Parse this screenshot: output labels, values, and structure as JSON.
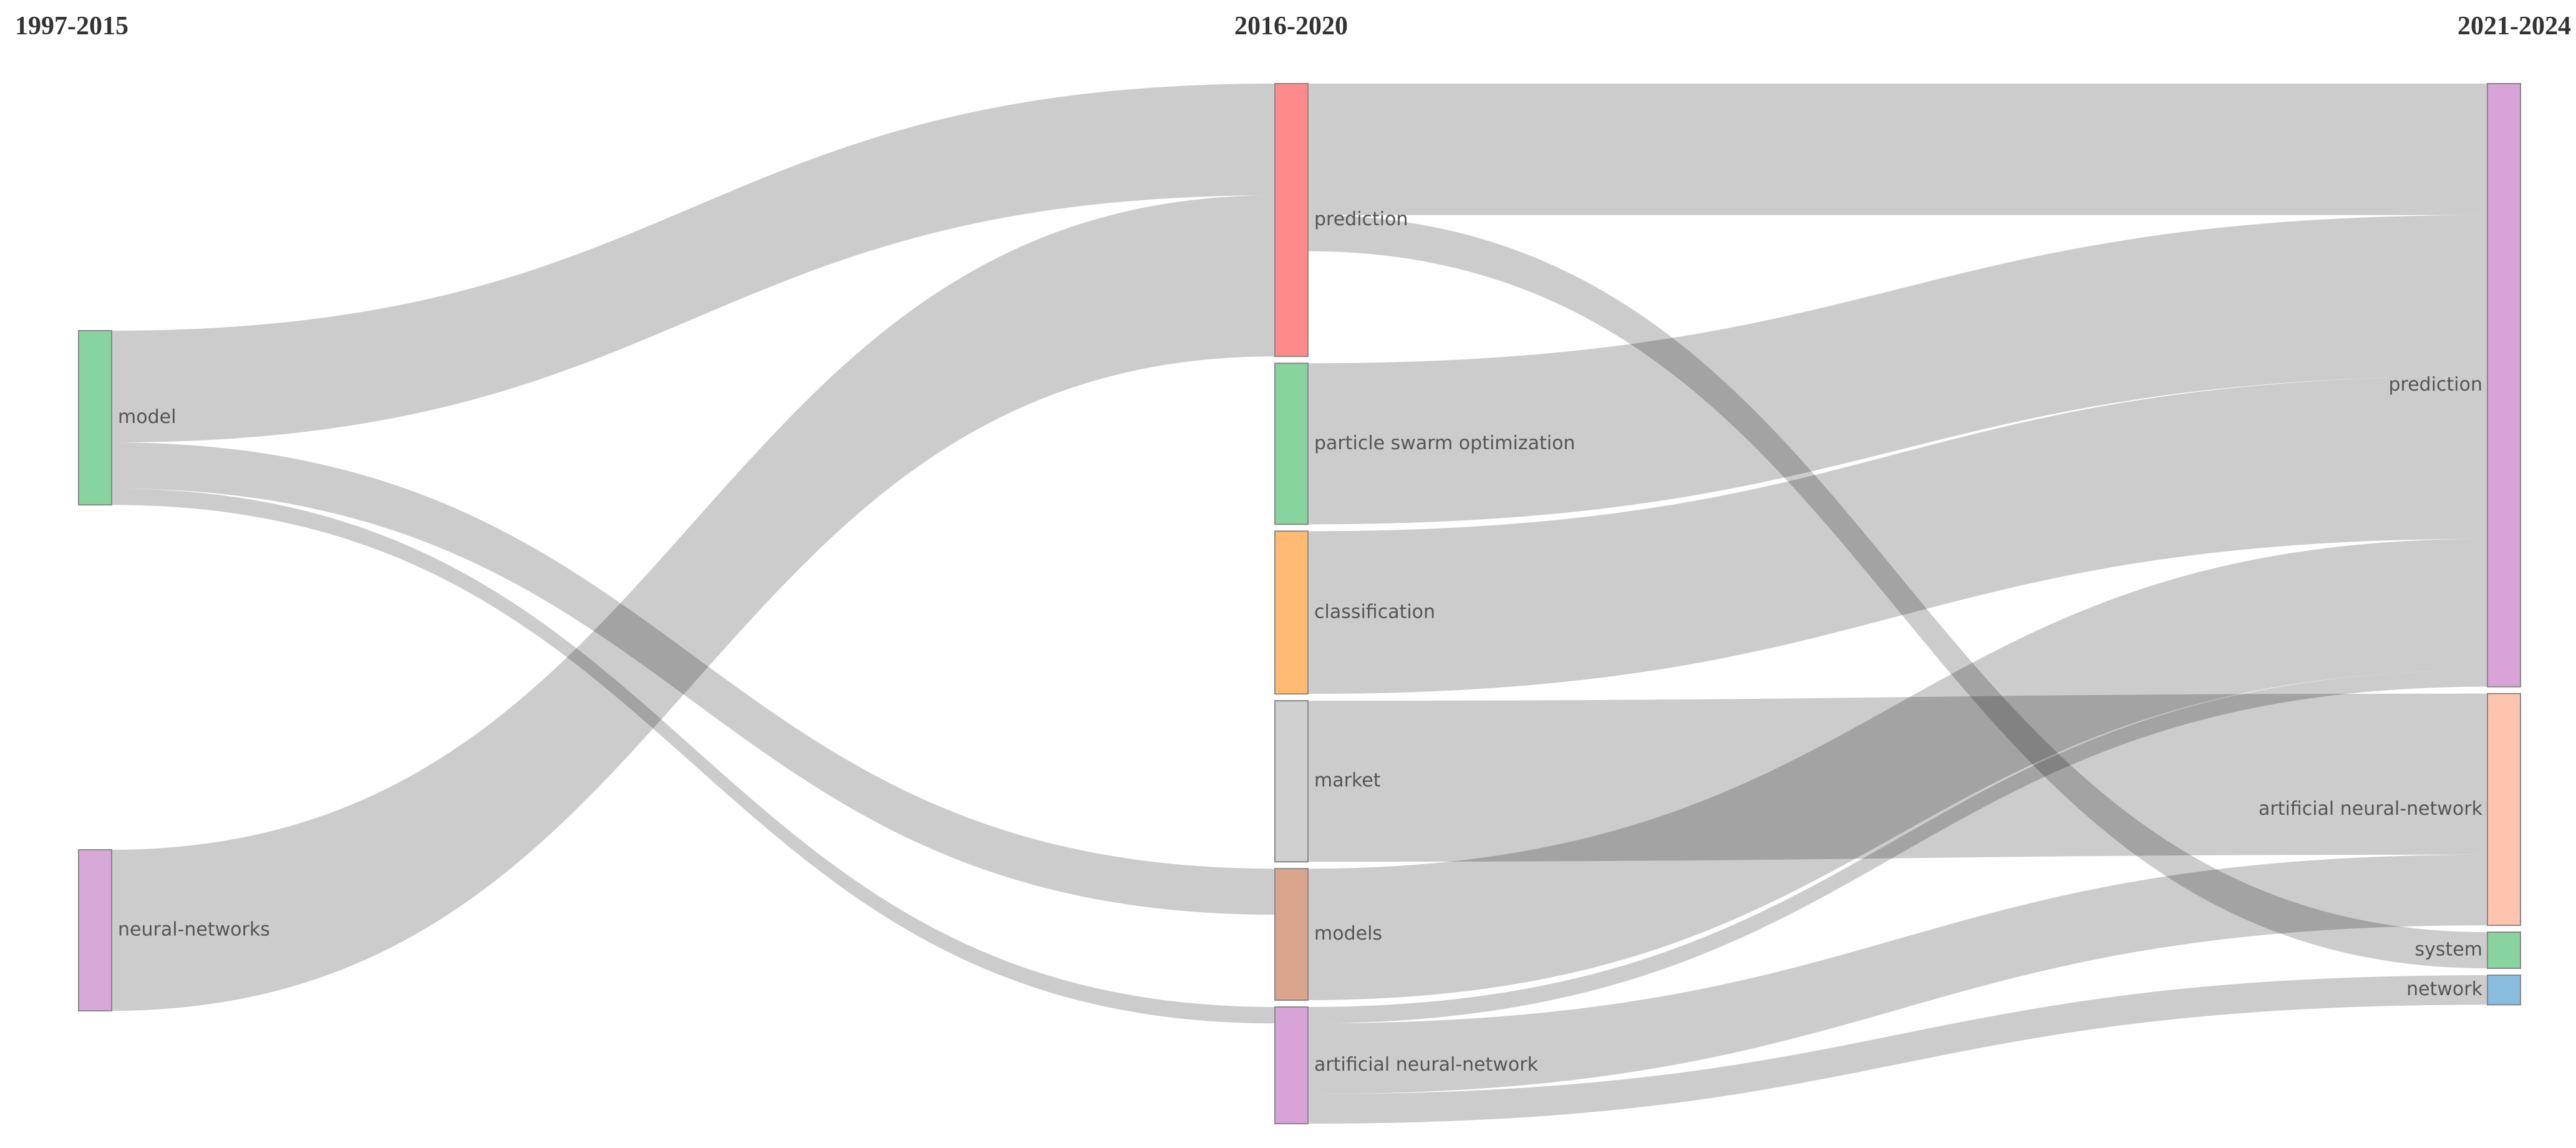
{
  "chart_data": {
    "type": "sankey",
    "columns": [
      "1997-2015",
      "2016-2020",
      "2021-2024"
    ],
    "nodes": [
      {
        "name": "model",
        "column": 0,
        "color": "#88d49e"
      },
      {
        "name": "neural-networks",
        "column": 0,
        "color": "#d8a8d8"
      },
      {
        "name": "prediction",
        "column": 1,
        "color": "#ff8a8a"
      },
      {
        "name": "particle swarm optimization",
        "column": 1,
        "color": "#88d49e"
      },
      {
        "name": "classification",
        "column": 1,
        "color": "#ffbb73"
      },
      {
        "name": "market",
        "column": 1,
        "color": "#d0d0d0"
      },
      {
        "name": "models",
        "column": 1,
        "color": "#dba48c"
      },
      {
        "name": "artificial neural-network",
        "column": 1,
        "color": "#d8a4d8"
      },
      {
        "name": "prediction",
        "column": 2,
        "color": "#d8a4d8"
      },
      {
        "name": "artificial neural-network",
        "column": 2,
        "color": "#ffc4ad"
      },
      {
        "name": "system",
        "column": 2,
        "color": "#88d49e"
      },
      {
        "name": "network",
        "column": 2,
        "color": "#88bde0"
      }
    ],
    "links": [
      {
        "source": 0,
        "target": 2,
        "value": 68
      },
      {
        "source": 0,
        "target": 6,
        "value": 28
      },
      {
        "source": 0,
        "target": 7,
        "value": 10
      },
      {
        "source": 1,
        "target": 2,
        "value": 98
      },
      {
        "source": 2,
        "target": 8,
        "value": 80
      },
      {
        "source": 2,
        "target": 10,
        "value": 22
      },
      {
        "source": 3,
        "target": 8,
        "value": 98
      },
      {
        "source": 4,
        "target": 8,
        "value": 99
      },
      {
        "source": 5,
        "target": 9,
        "value": 98
      },
      {
        "source": 6,
        "target": 8,
        "value": 80
      },
      {
        "source": 7,
        "target": 8,
        "value": 10
      },
      {
        "source": 7,
        "target": 9,
        "value": 43
      },
      {
        "source": 7,
        "target": 11,
        "value": 18
      }
    ]
  }
}
